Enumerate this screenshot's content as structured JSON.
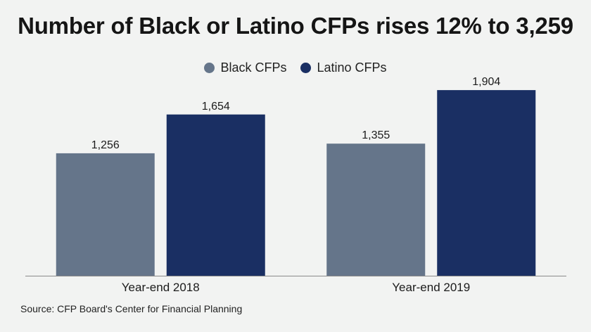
{
  "title": "Number of Black or Latino CFPs rises 12% to 3,259",
  "source": "Source: CFP Board's Center for Financial Planning",
  "colors": {
    "black_cfps": "#65758a",
    "latino_cfps": "#1a2f63",
    "axis": "#8a8a8a"
  },
  "chart_data": {
    "type": "bar",
    "title": "Number of Black or Latino CFPs rises 12% to 3,259",
    "categories": [
      "Year-end 2018",
      "Year-end 2019"
    ],
    "series": [
      {
        "name": "Black CFPs",
        "values": [
          1256,
          1355
        ],
        "labels": [
          "1,256",
          "1,355"
        ]
      },
      {
        "name": "Latino CFPs",
        "values": [
          1654,
          1904
        ],
        "labels": [
          "1,654",
          "1,904"
        ]
      }
    ],
    "xlabel": "",
    "ylabel": "",
    "ylim": [
      0,
      2000
    ],
    "legend_position": "top-center",
    "grid": false
  }
}
